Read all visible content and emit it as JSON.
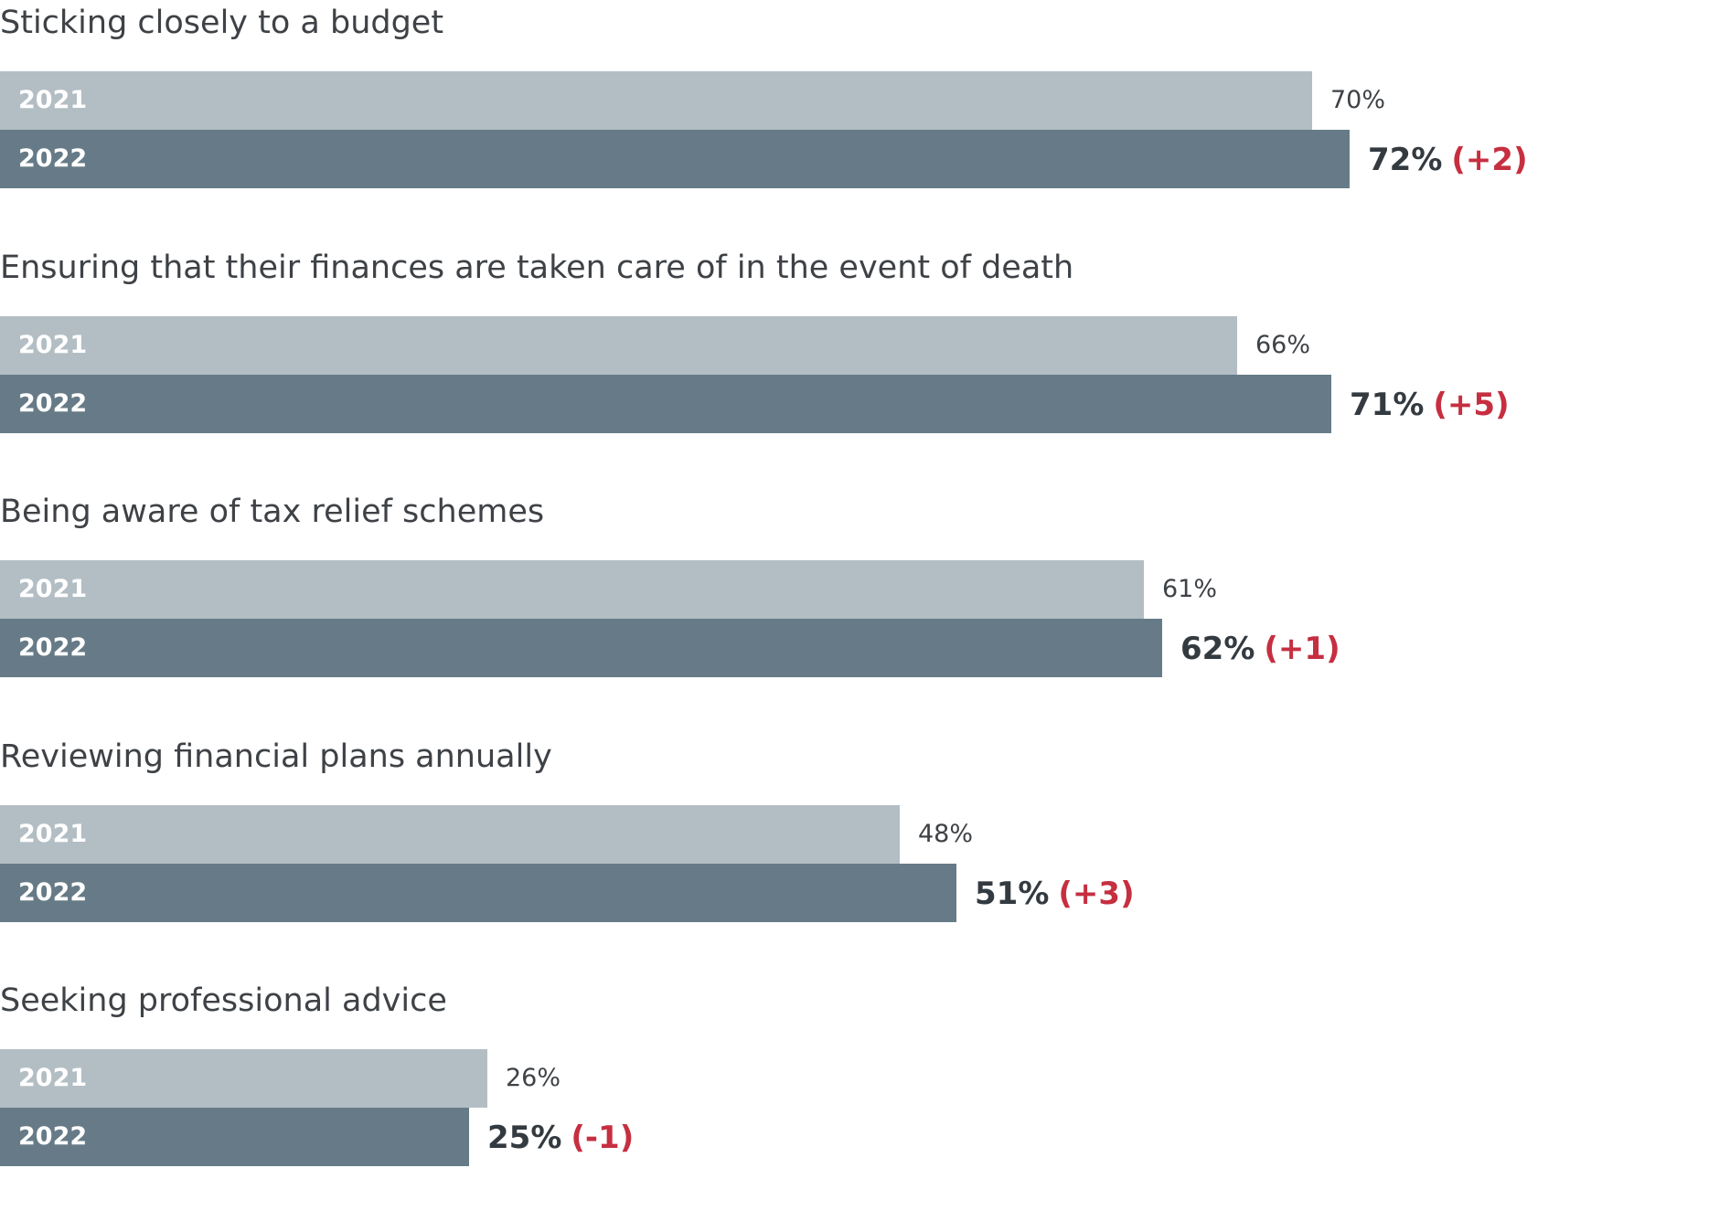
{
  "colors": {
    "bar_2021": "#b3bec4",
    "bar_2022": "#667b87",
    "change": "#c62f40"
  },
  "chart_data": {
    "type": "bar",
    "orientation": "horizontal",
    "xlim": [
      0,
      100
    ],
    "categories": [
      "Sticking closely to a budget",
      "Ensuring that their finances are taken care of in the event of death",
      "Being aware of tax relief schemes",
      "Reviewing financial plans annually",
      "Seeking professional advice"
    ],
    "series": [
      {
        "name": "2021",
        "values": [
          70,
          66,
          61,
          48,
          26
        ]
      },
      {
        "name": "2022",
        "values": [
          72,
          71,
          62,
          51,
          25
        ]
      }
    ],
    "labels_2021": [
      "70%",
      "66%",
      "61%",
      "48%",
      "26%"
    ],
    "labels_2022": [
      "72%",
      "71%",
      "62%",
      "51%",
      "25%"
    ],
    "changes": [
      "(+2)",
      "(+5)",
      "(+1)",
      "(+3)",
      "(-1)"
    ]
  }
}
